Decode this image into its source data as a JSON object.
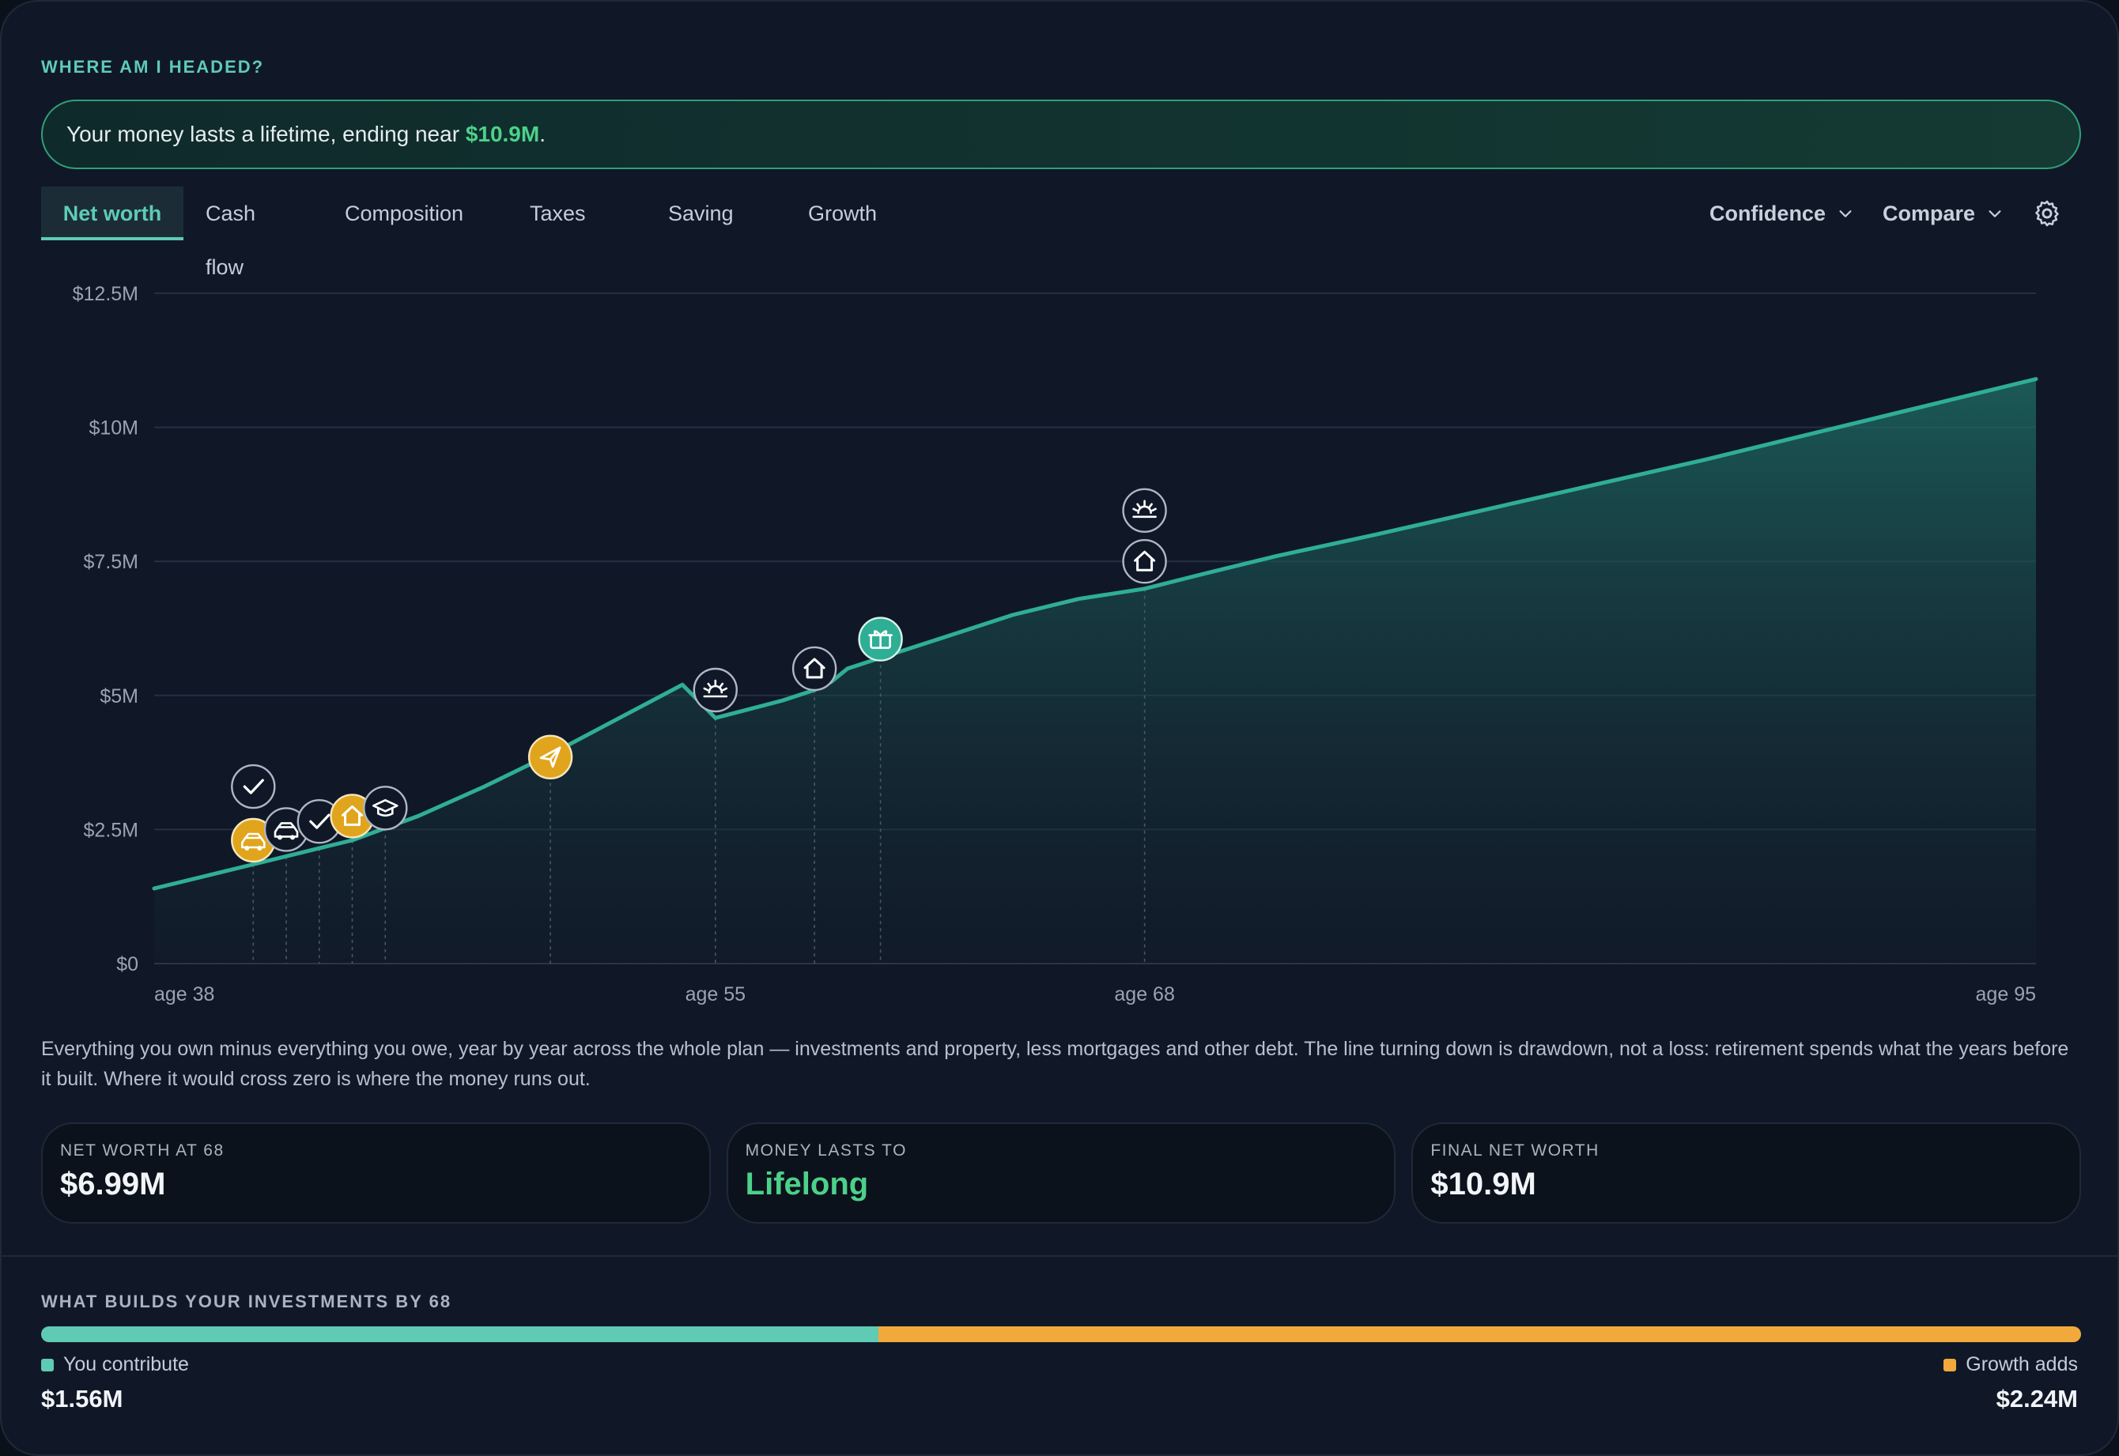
{
  "header": {
    "section_title": "WHERE AM I HEADED?",
    "banner_prefix": "Your money lasts a lifetime, ending near ",
    "banner_highlight": "$10.9M",
    "banner_suffix": "."
  },
  "tabs": [
    {
      "label": "Net worth",
      "active": true
    },
    {
      "label": "Cash flow",
      "active": false
    },
    {
      "label": "Composition",
      "active": false
    },
    {
      "label": "Taxes",
      "active": false
    },
    {
      "label": "Saving",
      "active": false
    },
    {
      "label": "Growth",
      "active": false
    }
  ],
  "toolbar": {
    "confidence_label": "Confidence",
    "compare_label": "Compare",
    "settings_icon": "gear-icon"
  },
  "chart_data": {
    "type": "area",
    "title": "",
    "xlabel": "",
    "ylabel": "",
    "x_ticks": [
      "age 38",
      "age 55",
      "age 68",
      "age 95"
    ],
    "x_tick_values": [
      38,
      55,
      68,
      95
    ],
    "y_ticks": [
      "$0",
      "$2.5M",
      "$5M",
      "$7.5M",
      "$10M",
      "$12.5M"
    ],
    "y_tick_values": [
      0,
      2.5,
      5,
      7.5,
      10,
      12.5
    ],
    "ylim": [
      0,
      12.5
    ],
    "xlim": [
      38,
      95
    ],
    "unit": "$M",
    "grid": true,
    "series": [
      {
        "color": "#2fae96",
        "x": [
          38,
          40,
          41,
          42,
          43,
          44,
          46,
          48,
          50,
          52,
          54,
          55,
          57,
          58,
          58.5,
          59,
          60,
          62,
          64,
          66,
          68,
          70,
          72,
          75,
          80,
          85,
          90,
          95
        ],
        "y": [
          1.4,
          1.7,
          1.85,
          2.0,
          2.15,
          2.3,
          2.75,
          3.3,
          3.9,
          4.55,
          5.2,
          4.58,
          4.9,
          5.1,
          5.25,
          5.5,
          5.7,
          6.1,
          6.5,
          6.8,
          6.99,
          7.3,
          7.6,
          8.0,
          8.7,
          9.4,
          10.15,
          10.9
        ]
      }
    ],
    "events": [
      {
        "x": 41,
        "y": 2.3,
        "icon": "car-icon",
        "style": "gold"
      },
      {
        "x": 41,
        "y": 3.3,
        "icon": "check-icon",
        "style": "outline"
      },
      {
        "x": 42,
        "y": 2.5,
        "icon": "car-icon",
        "style": "outline"
      },
      {
        "x": 43,
        "y": 2.65,
        "icon": "check-icon",
        "style": "outline"
      },
      {
        "x": 44,
        "y": 2.75,
        "icon": "home-icon",
        "style": "gold"
      },
      {
        "x": 45,
        "y": 2.9,
        "icon": "graduation-cap-icon",
        "style": "outline"
      },
      {
        "x": 50,
        "y": 3.85,
        "icon": "paper-plane-icon",
        "style": "gold"
      },
      {
        "x": 55,
        "y": 5.1,
        "icon": "sunrise-icon",
        "style": "outline"
      },
      {
        "x": 58,
        "y": 5.5,
        "icon": "home-icon",
        "style": "outline"
      },
      {
        "x": 60,
        "y": 6.05,
        "icon": "gift-icon",
        "style": "teal"
      },
      {
        "x": 68,
        "y": 7.5,
        "icon": "home-icon",
        "style": "outline"
      },
      {
        "x": 68,
        "y": 8.45,
        "icon": "sunrise-icon",
        "style": "outline"
      }
    ]
  },
  "description": "Everything you own minus everything you owe, year by year across the whole plan — investments and property, less mortgages and other debt. The line turning down is drawdown, not a loss: retirement spends what the years before it built. Where it would cross zero is where the money runs out.",
  "stats": [
    {
      "label": "NET WORTH AT 68",
      "value": "$6.99M"
    },
    {
      "label": "MONEY LASTS TO",
      "value": "Lifelong"
    },
    {
      "label": "FINAL NET WORTH",
      "value": "$10.9M"
    }
  ],
  "builds": {
    "title": "WHAT BUILDS YOUR INVESTMENTS BY 68",
    "contribute_label": "You contribute",
    "contribute_value": "$1.56M",
    "contribute_amount": 1.56,
    "growth_label": "Growth adds",
    "growth_value": "$2.24M",
    "growth_amount": 2.24,
    "contribute_color": "#5fcbb5",
    "growth_color": "#f2a93b"
  }
}
